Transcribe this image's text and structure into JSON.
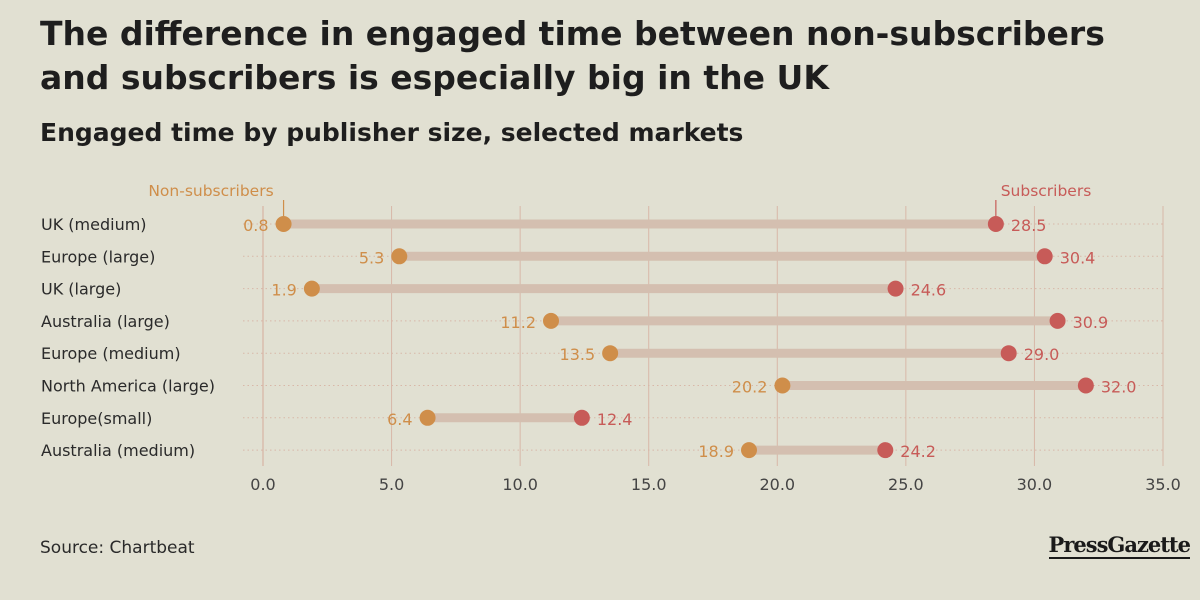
{
  "title": "The difference in engaged time between non-subscribers and subscribers is especially big in the UK",
  "subtitle": "Engaged time by publisher size, selected markets",
  "source": "Source: Chartbeat",
  "brand": "PressGazette",
  "colors": {
    "background": "#e1e0d2",
    "non_subscribers": "#cf8e4a",
    "subscribers": "#c75b58",
    "connector": "#d4bfb0",
    "grid": "#d8b7a8",
    "axis_text": "#444444"
  },
  "chart_data": {
    "type": "dumbbell",
    "title": "The difference in engaged time between non-subscribers and subscribers is especially big in the UK",
    "subtitle": "Engaged time by publisher size, selected markets",
    "categories": [
      "UK (medium)",
      "Europe (large)",
      "UK (large)",
      "Australia (large)",
      "Europe (medium)",
      "North America (large)",
      "Europe(small)",
      "Australia (medium)"
    ],
    "series": [
      {
        "name": "Non-subscribers",
        "color": "#cf8e4a",
        "values": [
          0.8,
          5.3,
          1.9,
          11.2,
          13.5,
          20.2,
          6.4,
          18.9
        ],
        "labels": [
          "0.8",
          "5.3",
          "1.9",
          "11.2",
          "13.5",
          "20.2",
          "6.4",
          "18.9"
        ]
      },
      {
        "name": "Subscribers",
        "color": "#c75b58",
        "values": [
          28.5,
          30.4,
          24.6,
          30.9,
          29.0,
          32.0,
          12.4,
          24.2
        ],
        "labels": [
          "28.5",
          "30.4",
          "24.6",
          "30.9",
          "29.0",
          "32.0",
          "12.4",
          "24.2"
        ]
      }
    ],
    "xlim": [
      0,
      35
    ],
    "xticks": [
      0,
      5,
      10,
      15,
      20,
      25,
      30,
      35
    ],
    "xtick_labels": [
      "0.0",
      "5.0",
      "10.0",
      "15.0",
      "20.0",
      "25.0",
      "30.0",
      "35.0"
    ],
    "grid": true,
    "legend": "annotated above first row"
  }
}
